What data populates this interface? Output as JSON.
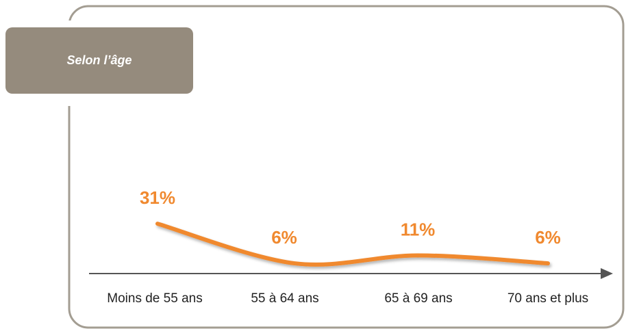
{
  "chart_data": {
    "type": "line",
    "title": "Selon l’âge",
    "categories": [
      "Moins de 55 ans",
      "55 à 64 ans",
      "65 à 69 ans",
      "70 ans et plus"
    ],
    "series": [
      {
        "color": "#f0892f",
        "values": [
          31,
          6,
          11,
          6
        ],
        "value_labels": [
          "31%",
          "6%",
          "11%",
          "6%"
        ]
      }
    ]
  }
}
